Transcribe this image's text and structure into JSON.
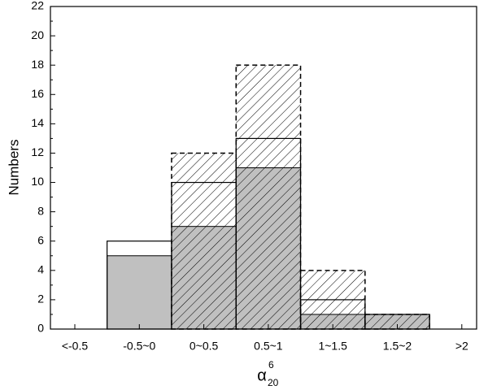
{
  "chart_data": {
    "type": "overlay-bar",
    "x_label": "α",
    "x_label_sup": "6",
    "x_label_sub": "20",
    "y_label": "Numbers",
    "categories": [
      "<-0.5",
      "-0.5~0",
      "0~0.5",
      "0.5~1",
      "1~1.5",
      "1.5~2",
      ">2"
    ],
    "series": [
      {
        "color": "#c0c0c0",
        "values": [
          0,
          5,
          7,
          11,
          1,
          1,
          0
        ]
      },
      {
        "color": "#ffffff",
        "values": [
          0,
          6,
          10,
          13,
          2,
          1,
          0
        ]
      },
      {
        "color": "#000000",
        "values": [
          0,
          0,
          12,
          18,
          4,
          1,
          0
        ]
      }
    ],
    "ylim": [
      0,
      22
    ],
    "yticks": [
      0,
      2,
      4,
      6,
      8,
      10,
      12,
      14,
      16,
      18,
      20,
      22
    ]
  }
}
